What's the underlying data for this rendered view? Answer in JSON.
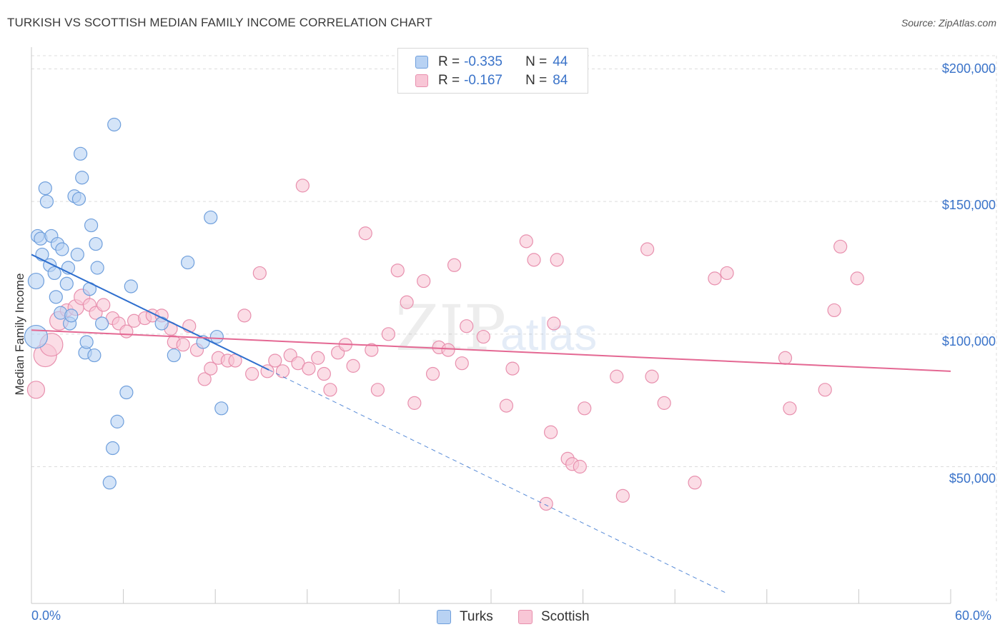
{
  "title": "TURKISH VS SCOTTISH MEDIAN FAMILY INCOME CORRELATION CHART",
  "source": "Source: ZipAtlas.com",
  "colors": {
    "turks_fill": "#b8d2f3",
    "turks_stroke": "#6f9fdc",
    "turks_line": "#2f6fce",
    "scottish_fill": "#f8c6d6",
    "scottish_stroke": "#e890ae",
    "scottish_line": "#e46893",
    "axis_text": "#3a73c9",
    "grid": "#dcdcdc"
  },
  "legend": {
    "turks": {
      "r_label": "R =",
      "r_value": "-0.335",
      "n_label": "N =",
      "n_value": "44"
    },
    "scottish": {
      "r_label": "R =",
      "r_value": "-0.167",
      "n_label": "N =",
      "n_value": "84"
    }
  },
  "bottom_legend": {
    "turks": "Turks",
    "scottish": "Scottish"
  },
  "watermark": {
    "zip": "ZIP",
    "atlas": "atlas"
  },
  "axes": {
    "ylabel": "Median Family Income",
    "x_min_label": "0.0%",
    "x_max_label": "60.0%",
    "y_ticks": [
      "$200,000",
      "$150,000",
      "$100,000",
      "$50,000"
    ]
  },
  "chart_data": {
    "type": "scatter",
    "title": "TURKISH VS SCOTTISH MEDIAN FAMILY INCOME CORRELATION CHART",
    "xlabel": "",
    "ylabel": "Median Family Income",
    "xlim": [
      0,
      60
    ],
    "ylim": [
      0,
      210000
    ],
    "y_ticks": [
      50000,
      100000,
      150000,
      200000
    ],
    "series": [
      {
        "name": "Turks",
        "R": -0.335,
        "N": 44,
        "trend": {
          "x0": 0,
          "y0": 130000,
          "x1": 15.5,
          "y1": 86500,
          "dashed_to_x": 45.3,
          "dashed_to_y": 2500
        },
        "points": [
          [
            0.3,
            99000,
            16
          ],
          [
            0.3,
            120000,
            11
          ],
          [
            0.4,
            137000,
            9
          ],
          [
            0.6,
            136000,
            9
          ],
          [
            0.7,
            130000,
            9
          ],
          [
            0.9,
            155000,
            9
          ],
          [
            1.0,
            150000,
            9
          ],
          [
            1.2,
            126000,
            9
          ],
          [
            1.3,
            137000,
            9
          ],
          [
            1.5,
            123000,
            9
          ],
          [
            1.6,
            114000,
            9
          ],
          [
            1.7,
            134000,
            9
          ],
          [
            1.9,
            108000,
            9
          ],
          [
            2.0,
            132000,
            9
          ],
          [
            2.3,
            119000,
            9
          ],
          [
            2.4,
            125000,
            9
          ],
          [
            2.5,
            104000,
            9
          ],
          [
            2.6,
            107000,
            9
          ],
          [
            2.8,
            152000,
            9
          ],
          [
            3.0,
            130000,
            9
          ],
          [
            3.1,
            151000,
            9
          ],
          [
            3.2,
            168000,
            9
          ],
          [
            3.3,
            159000,
            9
          ],
          [
            3.5,
            93000,
            9
          ],
          [
            3.6,
            97000,
            9
          ],
          [
            3.8,
            117000,
            9
          ],
          [
            3.9,
            141000,
            9
          ],
          [
            4.1,
            92000,
            9
          ],
          [
            4.2,
            134000,
            9
          ],
          [
            4.3,
            125000,
            9
          ],
          [
            4.6,
            104000,
            9
          ],
          [
            5.1,
            44000,
            9
          ],
          [
            5.3,
            57000,
            9
          ],
          [
            5.4,
            179000,
            9
          ],
          [
            5.6,
            67000,
            9
          ],
          [
            6.2,
            78000,
            9
          ],
          [
            6.5,
            118000,
            9
          ],
          [
            8.5,
            104000,
            9
          ],
          [
            9.3,
            92000,
            9
          ],
          [
            10.2,
            127000,
            9
          ],
          [
            11.2,
            97000,
            9
          ],
          [
            11.7,
            144000,
            9
          ],
          [
            12.1,
            99000,
            9
          ],
          [
            12.4,
            72000,
            9
          ]
        ]
      },
      {
        "name": "Scottish",
        "R": -0.167,
        "N": 84,
        "trend": {
          "x0": 0,
          "y0": 101500,
          "x1": 60,
          "y1": 86000
        },
        "points": [
          [
            0.3,
            79000,
            12
          ],
          [
            0.9,
            92000,
            16
          ],
          [
            1.3,
            96000,
            16
          ],
          [
            1.8,
            105000,
            13
          ],
          [
            2.3,
            109000,
            9
          ],
          [
            2.9,
            110000,
            11
          ],
          [
            3.3,
            114000,
            11
          ],
          [
            3.8,
            111000,
            9
          ],
          [
            4.2,
            108000,
            9
          ],
          [
            4.7,
            111000,
            9
          ],
          [
            5.3,
            106000,
            9
          ],
          [
            5.7,
            104000,
            9
          ],
          [
            6.2,
            101000,
            9
          ],
          [
            6.7,
            105000,
            9
          ],
          [
            7.4,
            106000,
            9
          ],
          [
            7.9,
            107000,
            9
          ],
          [
            8.5,
            107000,
            9
          ],
          [
            9.1,
            102000,
            9
          ],
          [
            9.3,
            97000,
            9
          ],
          [
            9.9,
            96000,
            9
          ],
          [
            10.3,
            103000,
            9
          ],
          [
            10.8,
            94000,
            9
          ],
          [
            11.3,
            83000,
            9
          ],
          [
            11.7,
            87000,
            9
          ],
          [
            12.2,
            91000,
            9
          ],
          [
            12.8,
            90000,
            9
          ],
          [
            13.3,
            90000,
            9
          ],
          [
            13.9,
            107000,
            9
          ],
          [
            14.4,
            85000,
            9
          ],
          [
            14.9,
            123000,
            9
          ],
          [
            15.4,
            86000,
            9
          ],
          [
            15.9,
            90000,
            9
          ],
          [
            16.4,
            86000,
            9
          ],
          [
            16.9,
            92000,
            9
          ],
          [
            17.4,
            89000,
            9
          ],
          [
            17.7,
            156000,
            9
          ],
          [
            18.1,
            87000,
            9
          ],
          [
            18.7,
            91000,
            9
          ],
          [
            19.1,
            85000,
            9
          ],
          [
            19.5,
            79000,
            9
          ],
          [
            20.0,
            93000,
            9
          ],
          [
            20.5,
            96000,
            9
          ],
          [
            21.0,
            88000,
            9
          ],
          [
            21.8,
            138000,
            9
          ],
          [
            22.2,
            94000,
            9
          ],
          [
            22.6,
            79000,
            9
          ],
          [
            23.3,
            100000,
            9
          ],
          [
            23.9,
            124000,
            9
          ],
          [
            24.5,
            112000,
            9
          ],
          [
            25.0,
            74000,
            9
          ],
          [
            25.6,
            120000,
            9
          ],
          [
            26.2,
            85000,
            9
          ],
          [
            26.6,
            95000,
            9
          ],
          [
            27.2,
            94000,
            9
          ],
          [
            27.6,
            126000,
            9
          ],
          [
            28.1,
            89000,
            9
          ],
          [
            28.4,
            103000,
            9
          ],
          [
            29.5,
            99000,
            9
          ],
          [
            31.0,
            73000,
            9
          ],
          [
            31.4,
            87000,
            9
          ],
          [
            32.3,
            135000,
            9
          ],
          [
            32.8,
            128000,
            9
          ],
          [
            33.6,
            36000,
            9
          ],
          [
            33.9,
            63000,
            9
          ],
          [
            34.1,
            104000,
            9
          ],
          [
            34.3,
            128000,
            9
          ],
          [
            35.0,
            53000,
            9
          ],
          [
            35.3,
            51000,
            9
          ],
          [
            35.8,
            50000,
            9
          ],
          [
            36.1,
            72000,
            9
          ],
          [
            38.2,
            84000,
            9
          ],
          [
            38.6,
            39000,
            9
          ],
          [
            40.2,
            132000,
            9
          ],
          [
            40.5,
            84000,
            9
          ],
          [
            41.3,
            74000,
            9
          ],
          [
            43.3,
            44000,
            9
          ],
          [
            44.6,
            121000,
            9
          ],
          [
            45.4,
            123000,
            9
          ],
          [
            49.2,
            91000,
            9
          ],
          [
            49.5,
            72000,
            9
          ],
          [
            51.8,
            79000,
            9
          ],
          [
            52.4,
            109000,
            9
          ],
          [
            52.8,
            133000,
            9
          ],
          [
            53.9,
            121000,
            9
          ]
        ]
      }
    ]
  }
}
